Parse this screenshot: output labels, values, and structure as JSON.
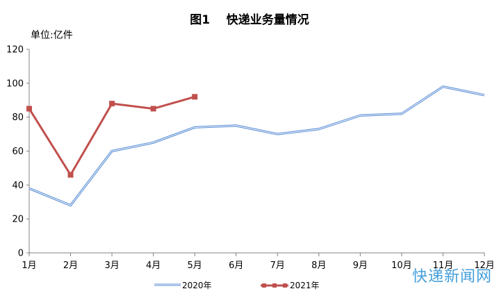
{
  "chart_data": {
    "type": "line",
    "title": "图1    快递业务量情况",
    "unit_label": "单位:亿件",
    "categories": [
      "1月",
      "2月",
      "3月",
      "4月",
      "5月",
      "6月",
      "7月",
      "8月",
      "9月",
      "10月",
      "11月",
      "12月"
    ],
    "ylim": [
      0,
      120
    ],
    "yticks": [
      0,
      20,
      40,
      60,
      80,
      100,
      120
    ],
    "series": [
      {
        "name": "2020年",
        "color": "#5b8fd6",
        "values": [
          38,
          28,
          60,
          65,
          74,
          75,
          70,
          73,
          81,
          82,
          98,
          93
        ]
      },
      {
        "name": "2021年",
        "color": "#c0504d",
        "values": [
          85,
          46,
          88,
          85,
          92,
          null,
          null,
          null,
          null,
          null,
          null,
          null
        ]
      }
    ],
    "legend_position": "bottom",
    "grid": false
  },
  "watermark": "快递新闻网"
}
